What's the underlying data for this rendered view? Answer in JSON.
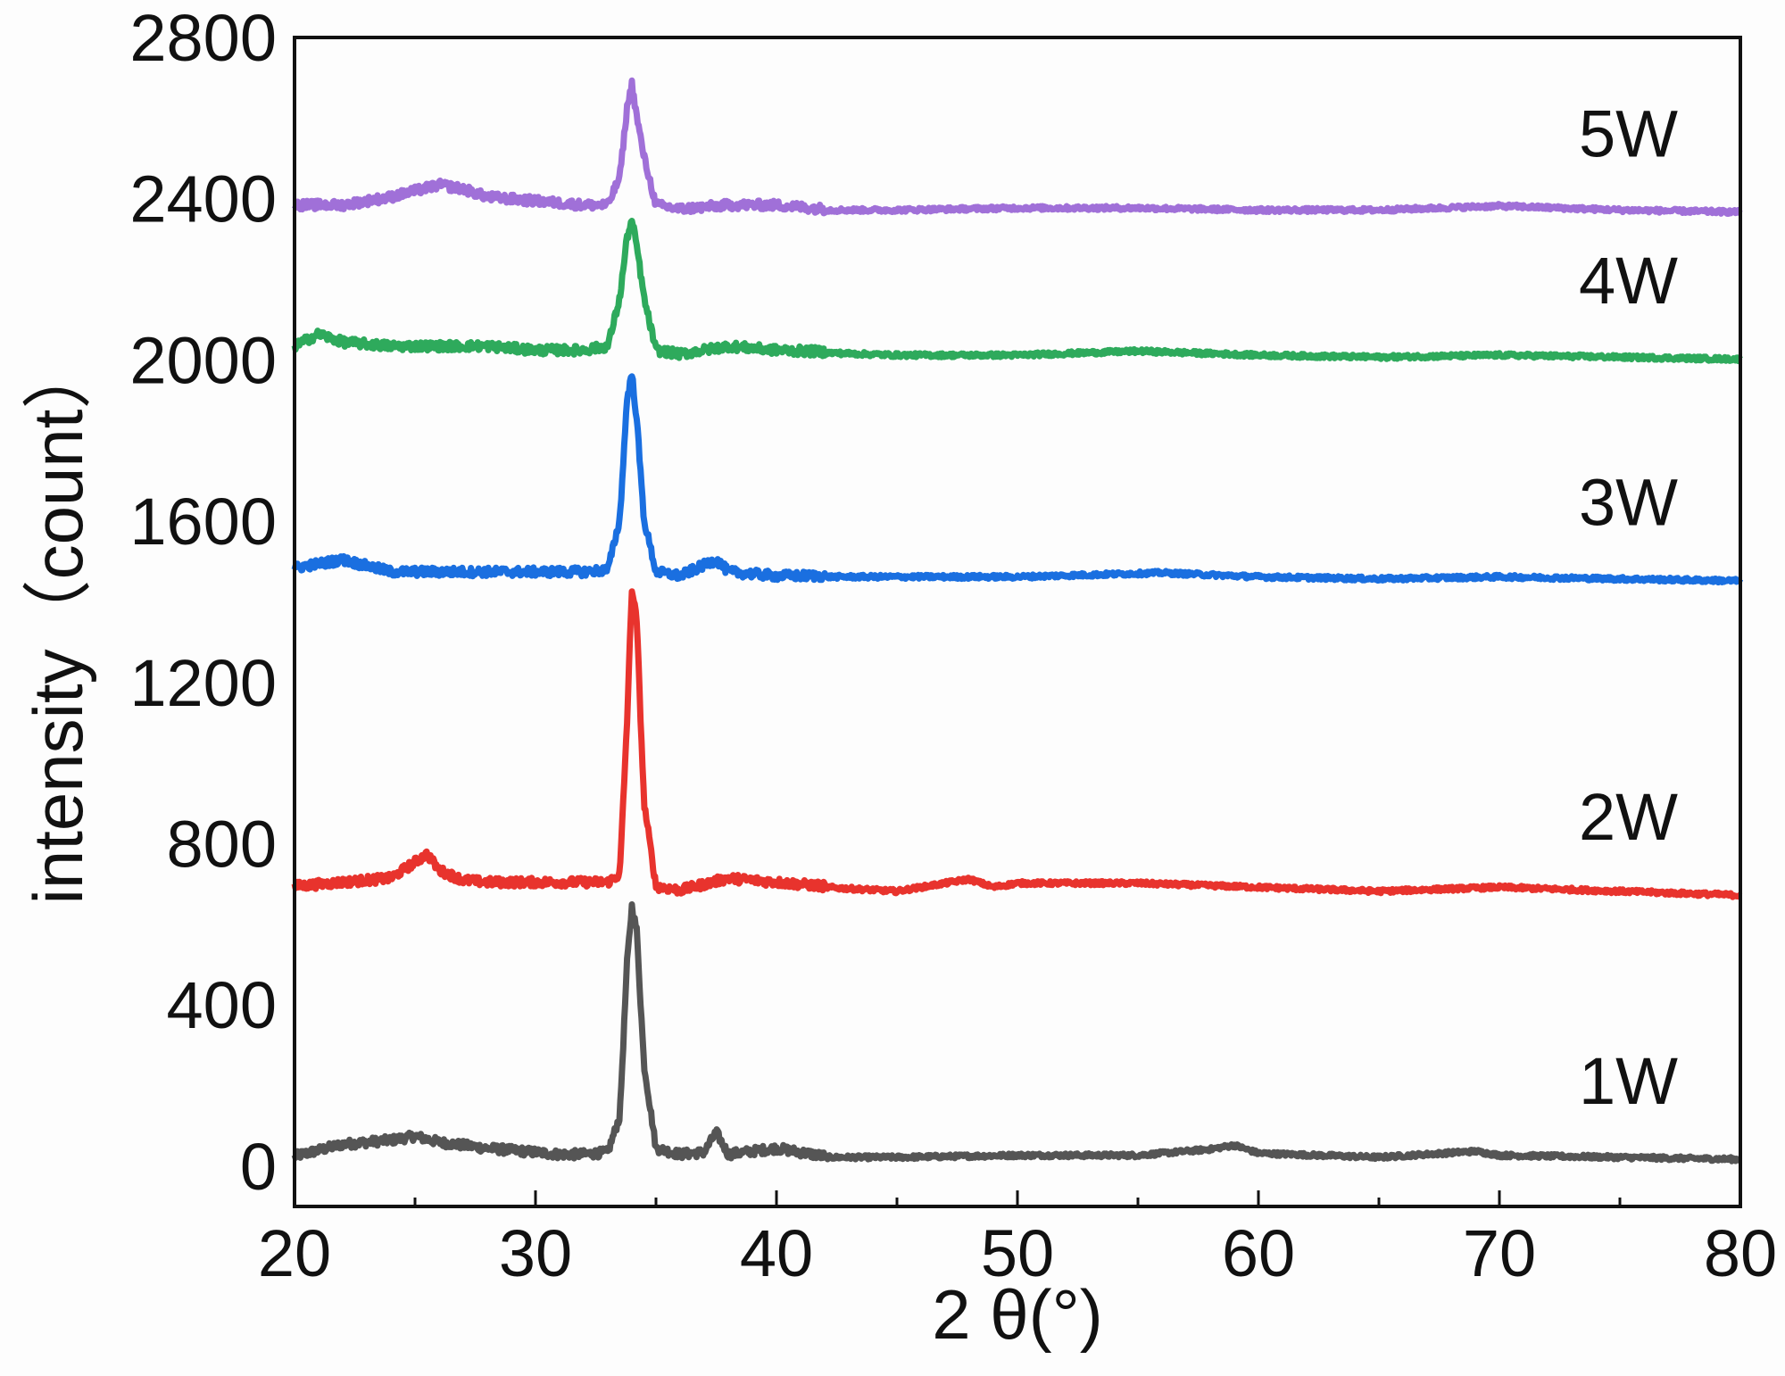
{
  "chart_data": {
    "type": "line",
    "xlabel": "2 θ(°)",
    "ylabel": "intensity（count）",
    "xlim": [
      20,
      80
    ],
    "ylim": [
      -100,
      2800
    ],
    "xticks": [
      20,
      30,
      40,
      50,
      60,
      70,
      80
    ],
    "yticks": [
      0,
      400,
      800,
      1200,
      1600,
      2000,
      2400,
      2800
    ],
    "grid": false,
    "series": [
      {
        "name": "1W",
        "color": "#555555",
        "x": [
          20,
          22,
          24,
          25,
          26,
          28,
          30,
          31,
          32,
          33,
          33.5,
          33.8,
          34.0,
          34.2,
          34.5,
          35,
          36,
          37,
          37.5,
          38,
          40,
          42,
          45,
          50,
          55,
          58,
          59,
          60,
          65,
          69,
          70,
          75,
          80
        ],
        "values": [
          20,
          50,
          60,
          70,
          55,
          40,
          30,
          25,
          25,
          30,
          120,
          500,
          640,
          580,
          250,
          40,
          25,
          30,
          80,
          25,
          40,
          20,
          20,
          25,
          25,
          40,
          50,
          30,
          20,
          35,
          25,
          20,
          15
        ]
      },
      {
        "name": "2W",
        "color": "#e8332d",
        "x": [
          20,
          22,
          24,
          25,
          25.5,
          26,
          27,
          28,
          30,
          32,
          33,
          33.5,
          33.8,
          34.0,
          34.2,
          34.5,
          35,
          36,
          38,
          40,
          42,
          45,
          48,
          49,
          50,
          55,
          60,
          65,
          70,
          75,
          80
        ],
        "values": [
          690,
          700,
          710,
          750,
          770,
          730,
          705,
          700,
          700,
          700,
          700,
          720,
          1100,
          1430,
          1350,
          900,
          690,
          680,
          710,
          700,
          690,
          680,
          710,
          690,
          700,
          700,
          690,
          680,
          690,
          680,
          670
        ]
      },
      {
        "name": "3W",
        "color": "#1a6fe0",
        "x": [
          20,
          22,
          24,
          26,
          28,
          30,
          32,
          33,
          33.5,
          33.8,
          34.0,
          34.2,
          34.5,
          35,
          36,
          37.5,
          38,
          40,
          45,
          50,
          56,
          60,
          65,
          70,
          75,
          80
        ],
        "values": [
          1480,
          1500,
          1470,
          1470,
          1470,
          1470,
          1470,
          1475,
          1600,
          1900,
          1960,
          1850,
          1600,
          1470,
          1460,
          1500,
          1470,
          1460,
          1460,
          1460,
          1470,
          1460,
          1455,
          1460,
          1455,
          1450
        ]
      },
      {
        "name": "4W",
        "color": "#2eaa5c",
        "x": [
          20,
          21,
          22,
          24,
          26,
          28,
          30,
          32,
          33,
          33.5,
          33.8,
          34.0,
          34.2,
          34.5,
          35,
          36,
          38,
          40,
          45,
          50,
          55,
          60,
          65,
          70,
          75,
          80
        ],
        "values": [
          2030,
          2060,
          2040,
          2030,
          2030,
          2030,
          2020,
          2020,
          2030,
          2150,
          2300,
          2340,
          2280,
          2150,
          2020,
          2010,
          2030,
          2020,
          2010,
          2010,
          2020,
          2010,
          2005,
          2010,
          2005,
          2000
        ]
      },
      {
        "name": "5W",
        "color": "#a070d8",
        "x": [
          20,
          22,
          24,
          26,
          27,
          28,
          30,
          32,
          33,
          33.5,
          33.8,
          34.0,
          34.2,
          34.5,
          35,
          36,
          38,
          40,
          42,
          45,
          50,
          55,
          60,
          65,
          70,
          75,
          80
        ],
        "values": [
          2380,
          2380,
          2400,
          2430,
          2420,
          2400,
          2390,
          2380,
          2380,
          2450,
          2620,
          2680,
          2600,
          2500,
          2380,
          2370,
          2380,
          2380,
          2370,
          2370,
          2375,
          2375,
          2370,
          2370,
          2380,
          2370,
          2365
        ]
      }
    ]
  }
}
